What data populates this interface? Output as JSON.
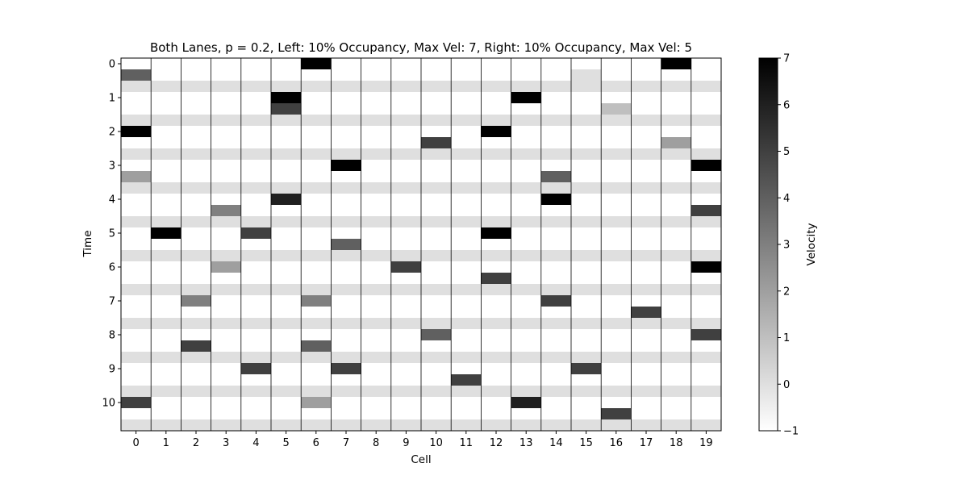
{
  "chart_data": {
    "type": "heatmap",
    "title": "Both Lanes, p = 0.2, Left: 10% Occupancy, Max Vel: 7, Right: 10% Occupancy, Max Vel: 5",
    "xlabel": "Cell",
    "ylabel": "Time",
    "x_ticks": [
      "0",
      "1",
      "2",
      "3",
      "4",
      "5",
      "6",
      "7",
      "8",
      "9",
      "10",
      "11",
      "12",
      "13",
      "14",
      "15",
      "16",
      "17",
      "18",
      "19"
    ],
    "y_ticks": [
      "0",
      "1",
      "2",
      "3",
      "4",
      "5",
      "6",
      "7",
      "8",
      "9",
      "10"
    ],
    "colorbar": {
      "label": "Velocity",
      "min": -1,
      "max": 7,
      "ticks": [
        "−1",
        "0",
        "1",
        "2",
        "3",
        "4",
        "5",
        "6",
        "7"
      ],
      "colormap": "gray_r"
    },
    "empty_cell_value": -1,
    "separator_row_value": 0,
    "lanes": [
      "left",
      "right"
    ],
    "cells": [
      {
        "time": 0,
        "lane": "left",
        "cell": 6,
        "velocity": 7
      },
      {
        "time": 0,
        "lane": "left",
        "cell": 18,
        "velocity": 7
      },
      {
        "time": 0,
        "lane": "right",
        "cell": 0,
        "velocity": 4
      },
      {
        "time": 0,
        "lane": "right",
        "cell": 15,
        "velocity": 0
      },
      {
        "time": 1,
        "lane": "left",
        "cell": 5,
        "velocity": 7
      },
      {
        "time": 1,
        "lane": "left",
        "cell": 13,
        "velocity": 7
      },
      {
        "time": 1,
        "lane": "right",
        "cell": 5,
        "velocity": 5
      },
      {
        "time": 1,
        "lane": "right",
        "cell": 16,
        "velocity": 1
      },
      {
        "time": 2,
        "lane": "left",
        "cell": 0,
        "velocity": 7
      },
      {
        "time": 2,
        "lane": "left",
        "cell": 12,
        "velocity": 7
      },
      {
        "time": 2,
        "lane": "right",
        "cell": 10,
        "velocity": 5
      },
      {
        "time": 2,
        "lane": "right",
        "cell": 18,
        "velocity": 2
      },
      {
        "time": 3,
        "lane": "left",
        "cell": 7,
        "velocity": 7
      },
      {
        "time": 3,
        "lane": "left",
        "cell": 19,
        "velocity": 7
      },
      {
        "time": 3,
        "lane": "right",
        "cell": 0,
        "velocity": 2
      },
      {
        "time": 3,
        "lane": "right",
        "cell": 14,
        "velocity": 4
      },
      {
        "time": 4,
        "lane": "left",
        "cell": 5,
        "velocity": 6
      },
      {
        "time": 4,
        "lane": "left",
        "cell": 14,
        "velocity": 7
      },
      {
        "time": 4,
        "lane": "right",
        "cell": 3,
        "velocity": 3
      },
      {
        "time": 4,
        "lane": "right",
        "cell": 19,
        "velocity": 5
      },
      {
        "time": 5,
        "lane": "left",
        "cell": 1,
        "velocity": 7
      },
      {
        "time": 5,
        "lane": "left",
        "cell": 4,
        "velocity": 5
      },
      {
        "time": 5,
        "lane": "left",
        "cell": 12,
        "velocity": 7
      },
      {
        "time": 5,
        "lane": "right",
        "cell": 7,
        "velocity": 4
      },
      {
        "time": 6,
        "lane": "left",
        "cell": 3,
        "velocity": 2
      },
      {
        "time": 6,
        "lane": "left",
        "cell": 9,
        "velocity": 5
      },
      {
        "time": 6,
        "lane": "left",
        "cell": 19,
        "velocity": 7
      },
      {
        "time": 6,
        "lane": "right",
        "cell": 12,
        "velocity": 5
      },
      {
        "time": 7,
        "lane": "left",
        "cell": 2,
        "velocity": 3
      },
      {
        "time": 7,
        "lane": "left",
        "cell": 6,
        "velocity": 3
      },
      {
        "time": 7,
        "lane": "left",
        "cell": 14,
        "velocity": 5
      },
      {
        "time": 7,
        "lane": "right",
        "cell": 17,
        "velocity": 5
      },
      {
        "time": 8,
        "lane": "left",
        "cell": 10,
        "velocity": 4
      },
      {
        "time": 8,
        "lane": "left",
        "cell": 19,
        "velocity": 5
      },
      {
        "time": 8,
        "lane": "right",
        "cell": 2,
        "velocity": 5
      },
      {
        "time": 8,
        "lane": "right",
        "cell": 6,
        "velocity": 4
      },
      {
        "time": 9,
        "lane": "left",
        "cell": 4,
        "velocity": 5
      },
      {
        "time": 9,
        "lane": "left",
        "cell": 7,
        "velocity": 5
      },
      {
        "time": 9,
        "lane": "left",
        "cell": 15,
        "velocity": 5
      },
      {
        "time": 9,
        "lane": "right",
        "cell": 11,
        "velocity": 5
      },
      {
        "time": 10,
        "lane": "left",
        "cell": 0,
        "velocity": 5
      },
      {
        "time": 10,
        "lane": "left",
        "cell": 6,
        "velocity": 2
      },
      {
        "time": 10,
        "lane": "left",
        "cell": 13,
        "velocity": 6
      },
      {
        "time": 10,
        "lane": "right",
        "cell": 16,
        "velocity": 5
      }
    ]
  }
}
